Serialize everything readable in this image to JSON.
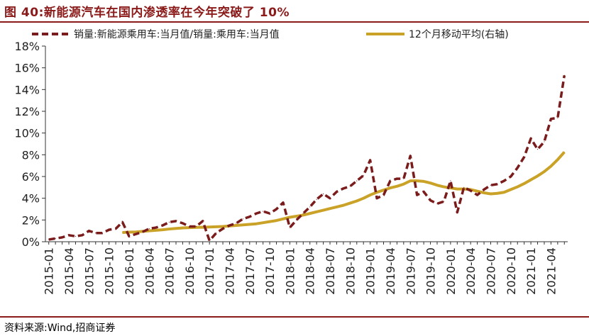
{
  "title": "图 40:新能源汽车在国内渗透率在今年突破了 10%",
  "source": "资料来源:Wind,招商证券",
  "chart_data": {
    "type": "line",
    "title": "图 40:新能源汽车在国内渗透率在今年突破了 10%",
    "legend_position": "top",
    "grid": false,
    "ylim": [
      0,
      18
    ],
    "y_ticks": [
      "0%",
      "2%",
      "4%",
      "6%",
      "8%",
      "10%",
      "12%",
      "14%",
      "16%",
      "18%"
    ],
    "x_tick_labels": [
      "2015-01",
      "2015-04",
      "2015-07",
      "2015-10",
      "2016-01",
      "2016-04",
      "2016-07",
      "2016-10",
      "2017-01",
      "2017-04",
      "2017-07",
      "2017-10",
      "2018-01",
      "2018-04",
      "2018-07",
      "2018-10",
      "2019-01",
      "2019-04",
      "2019-07",
      "2019-10",
      "2020-01",
      "2020-04",
      "2020-07",
      "2020-10",
      "2021-01",
      "2021-04"
    ],
    "x": [
      "2015-01",
      "2015-02",
      "2015-03",
      "2015-04",
      "2015-05",
      "2015-06",
      "2015-07",
      "2015-08",
      "2015-09",
      "2015-10",
      "2015-11",
      "2015-12",
      "2016-01",
      "2016-02",
      "2016-03",
      "2016-04",
      "2016-05",
      "2016-06",
      "2016-07",
      "2016-08",
      "2016-09",
      "2016-10",
      "2016-11",
      "2016-12",
      "2017-01",
      "2017-02",
      "2017-03",
      "2017-04",
      "2017-05",
      "2017-06",
      "2017-07",
      "2017-08",
      "2017-09",
      "2017-10",
      "2017-11",
      "2017-12",
      "2018-01",
      "2018-02",
      "2018-03",
      "2018-04",
      "2018-05",
      "2018-06",
      "2018-07",
      "2018-08",
      "2018-09",
      "2018-10",
      "2018-11",
      "2018-12",
      "2019-01",
      "2019-02",
      "2019-03",
      "2019-04",
      "2019-05",
      "2019-06",
      "2019-07",
      "2019-08",
      "2019-09",
      "2019-10",
      "2019-11",
      "2019-12",
      "2020-01",
      "2020-02",
      "2020-03",
      "2020-04",
      "2020-05",
      "2020-06",
      "2020-07",
      "2020-08",
      "2020-09",
      "2020-10",
      "2020-11",
      "2020-12",
      "2021-01",
      "2021-02",
      "2021-03",
      "2021-04",
      "2021-05",
      "2021-06"
    ],
    "series": [
      {
        "name": "销量:新能源乘用车:当月值/销量:乘用车:当月值",
        "axis": "left",
        "color": "#7b1c1c",
        "style": "dashed",
        "values": [
          0.2,
          0.3,
          0.4,
          0.6,
          0.5,
          0.6,
          1.0,
          0.8,
          0.8,
          1.1,
          1.2,
          1.8,
          0.5,
          0.7,
          0.9,
          1.2,
          1.3,
          1.5,
          1.8,
          1.9,
          1.7,
          1.4,
          1.4,
          1.9,
          0.1,
          0.8,
          1.2,
          1.5,
          1.7,
          2.1,
          2.3,
          2.6,
          2.8,
          2.6,
          3.0,
          3.6,
          1.3,
          2.0,
          2.6,
          3.2,
          3.9,
          4.4,
          4.0,
          4.6,
          4.9,
          5.1,
          5.6,
          6.1,
          7.5,
          4.0,
          4.3,
          5.6,
          5.8,
          5.8,
          7.9,
          4.3,
          4.6,
          3.8,
          3.5,
          3.7,
          5.6,
          2.7,
          5.0,
          4.7,
          4.3,
          4.8,
          5.2,
          5.3,
          5.6,
          6.0,
          6.8,
          7.8,
          9.5,
          8.5,
          9.2,
          11.3,
          11.4,
          15.3
        ]
      },
      {
        "name": "12个月移动平均(右轴)",
        "axis": "right",
        "color": "#c9a227",
        "style": "solid",
        "values": [
          null,
          null,
          null,
          null,
          null,
          null,
          null,
          null,
          null,
          null,
          null,
          0.85,
          0.88,
          0.9,
          0.95,
          1.0,
          1.05,
          1.1,
          1.17,
          1.22,
          1.27,
          1.3,
          1.32,
          1.33,
          1.35,
          1.38,
          1.4,
          1.45,
          1.5,
          1.55,
          1.6,
          1.65,
          1.75,
          1.85,
          1.95,
          2.1,
          2.25,
          2.35,
          2.45,
          2.6,
          2.75,
          2.9,
          3.05,
          3.2,
          3.35,
          3.55,
          3.75,
          4.0,
          4.3,
          4.55,
          4.75,
          4.95,
          5.1,
          5.3,
          5.6,
          5.6,
          5.55,
          5.4,
          5.2,
          5.05,
          4.95,
          4.85,
          4.85,
          4.8,
          4.65,
          4.5,
          4.4,
          4.45,
          4.55,
          4.8,
          5.05,
          5.35,
          5.7,
          6.05,
          6.45,
          6.95,
          7.55,
          8.25
        ]
      }
    ]
  }
}
